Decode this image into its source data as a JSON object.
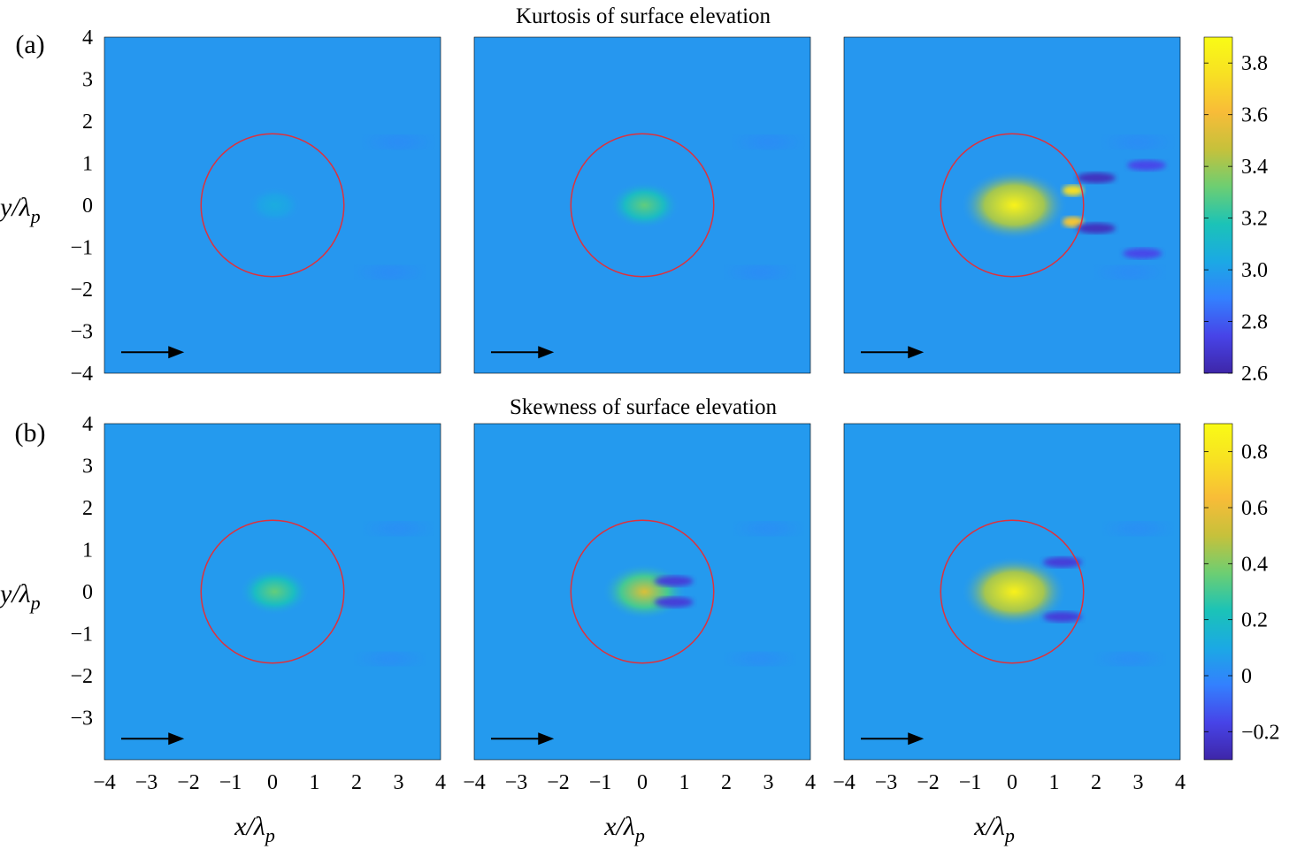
{
  "colors": {
    "background": "#2f7ff2",
    "circle": "#e0303a",
    "arrow": "#000000",
    "colormap": [
      "#3e26a8",
      "#4744e8",
      "#3380fe",
      "#1ba9e4",
      "#1bc3b7",
      "#6dce72",
      "#c6c13b",
      "#f8bc38",
      "#f8e023",
      "#f9fb15"
    ]
  },
  "chart_data": [
    {
      "type": "heatmap",
      "row": "a",
      "panel_label": "(a)",
      "title": "Kurtosis of surface elevation",
      "xlabel": "x/λp",
      "ylabel": "y/λp",
      "xlim": [
        -4,
        4
      ],
      "ylim": [
        -4,
        4
      ],
      "y_ticks": [
        4,
        3,
        2,
        1,
        0,
        -1,
        -2,
        -3,
        -4
      ],
      "x_ticks": [],
      "colorbar": {
        "min": 2.6,
        "max": 3.9,
        "ticks": [
          3.8,
          3.6,
          3.4,
          3.2,
          3.0,
          2.8,
          2.6
        ],
        "tick_labels": [
          "3.8",
          "3.6",
          "3.4",
          "3.2",
          "3.0",
          "2.8",
          "2.6"
        ]
      },
      "background_value": 2.97,
      "circle_radius": 1.7,
      "arrow_direction": "+x",
      "panels": [
        {
          "peak_value": 3.05,
          "features": []
        },
        {
          "peak_value": 3.3,
          "features": []
        },
        {
          "peak_value": 3.85,
          "features": [
            {
              "x": 1.45,
              "y": 0.35,
              "value": 3.75
            },
            {
              "x": 1.45,
              "y": -0.4,
              "value": 3.65
            },
            {
              "x": 2.0,
              "y": 0.65,
              "value": 2.65
            },
            {
              "x": 2.0,
              "y": -0.55,
              "value": 2.65
            },
            {
              "x": 3.2,
              "y": 0.95,
              "value": 2.75
            },
            {
              "x": 3.1,
              "y": -1.15,
              "value": 2.75
            }
          ]
        }
      ]
    },
    {
      "type": "heatmap",
      "row": "b",
      "panel_label": "(b)",
      "title": "Skewness of surface elevation",
      "xlabel": "x/λp",
      "ylabel": "y/λp",
      "xlim": [
        -4,
        4
      ],
      "ylim": [
        -4,
        4
      ],
      "y_ticks": [
        4,
        3,
        2,
        1,
        0,
        -1,
        -2,
        -3
      ],
      "x_ticks": [
        -4,
        -3,
        -2,
        -1,
        0,
        1,
        2,
        3,
        4
      ],
      "colorbar": {
        "min": -0.3,
        "max": 0.9,
        "ticks": [
          0.8,
          0.6,
          0.4,
          0.2,
          0,
          -0.2
        ],
        "tick_labels": [
          "0.8",
          "0.6",
          "0.4",
          "0.2",
          "0",
          "−0.2"
        ]
      },
      "background_value": 0.05,
      "circle_radius": 1.7,
      "arrow_direction": "+x",
      "panels": [
        {
          "peak_value": 0.35,
          "features": []
        },
        {
          "peak_value": 0.55,
          "features": [
            {
              "x": 0.75,
              "y": 0.25,
              "value": -0.2
            },
            {
              "x": 0.75,
              "y": -0.25,
              "value": -0.2
            }
          ]
        },
        {
          "peak_value": 0.85,
          "features": [
            {
              "x": 1.2,
              "y": 0.7,
              "value": -0.2
            },
            {
              "x": 1.2,
              "y": -0.6,
              "value": -0.2
            }
          ]
        }
      ]
    }
  ]
}
